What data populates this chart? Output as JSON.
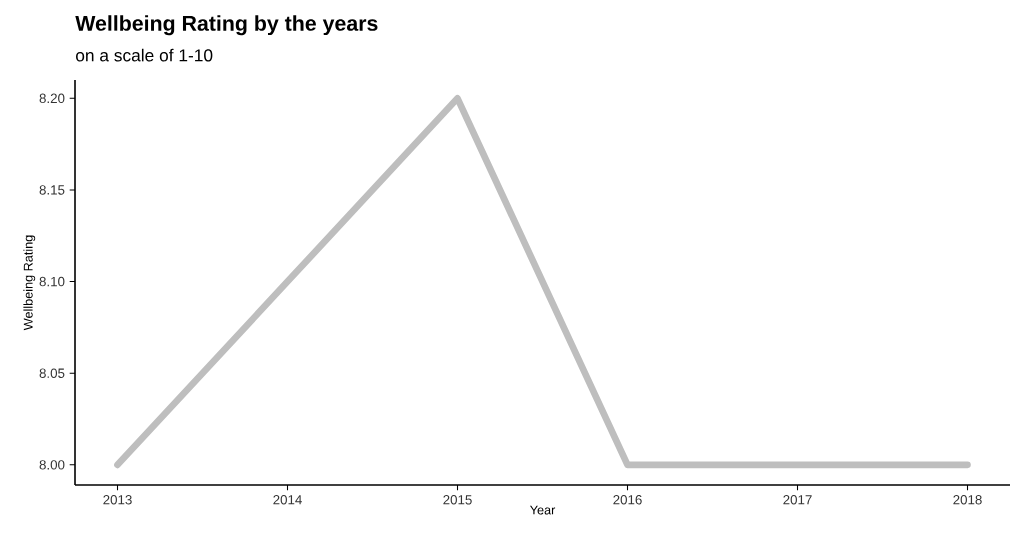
{
  "chart_data": {
    "type": "line",
    "title": "Wellbeing Rating by the years",
    "subtitle": "on a scale of 1-10",
    "xlabel": "Year",
    "ylabel": "Wellbeing Rating",
    "x": [
      2013,
      2014,
      2015,
      2016,
      2017,
      2018
    ],
    "series": [
      {
        "color": "#bebebe",
        "values": [
          8.0,
          8.1,
          8.2,
          8.0,
          8.0,
          8.0
        ]
      }
    ],
    "xlim": [
      2012.75,
      2018.25
    ],
    "ylim": [
      7.989,
      8.21
    ],
    "xticks": [
      2013,
      2014,
      2015,
      2016,
      2017,
      2018
    ],
    "yticks": [
      {
        "value": 8.0,
        "label": "8.00"
      },
      {
        "value": 8.05,
        "label": "8.05"
      },
      {
        "value": 8.1,
        "label": "8.10"
      },
      {
        "value": 8.15,
        "label": "8.15"
      },
      {
        "value": 8.2,
        "label": "8.20"
      }
    ],
    "marker": "none",
    "line_style": "solid"
  }
}
